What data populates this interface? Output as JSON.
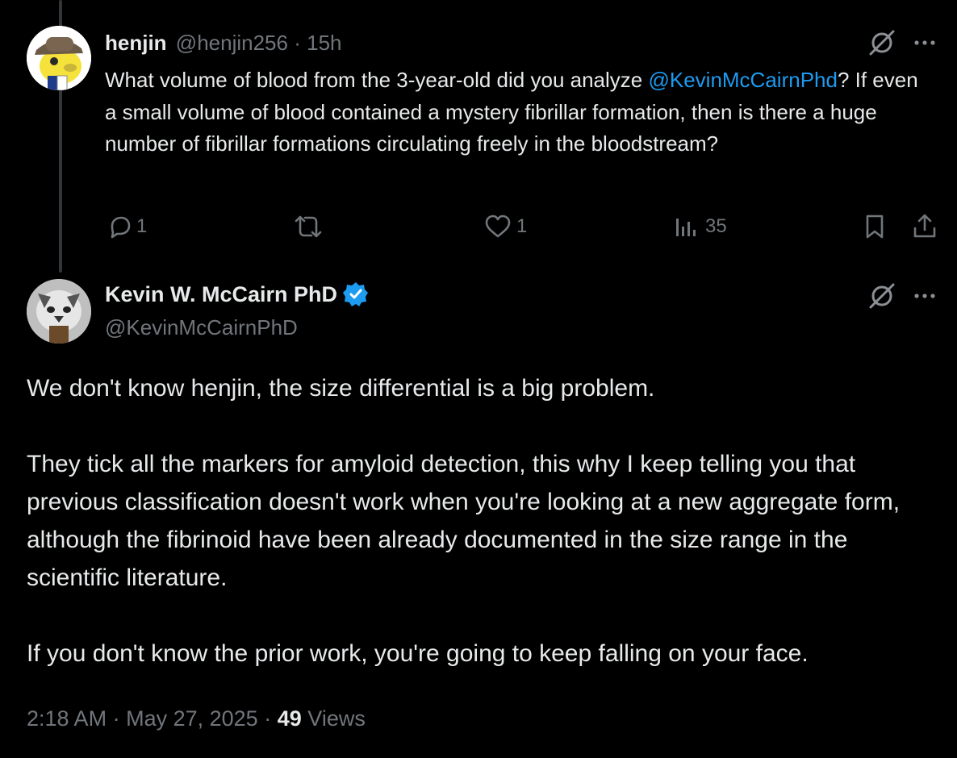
{
  "reply": {
    "display_name": "henjin",
    "handle": "@henjin256",
    "separator": "·",
    "time_ago": "15h",
    "text_prefix": "What volume of blood from the 3-year-old did you analyze ",
    "mention": "@KevinMcCairnPhd",
    "text_suffix": "? If even a small volume of blood contained a mystery fibrillar formation, then is there a huge number of fibrillar formations circulating freely in the bloodstream?",
    "actions": {
      "replies": "1",
      "reposts": "",
      "likes": "1",
      "views": "35"
    }
  },
  "main": {
    "display_name": "Kevin W. McCairn PhD",
    "handle": "@KevinMcCairnPhD",
    "verified_color": "#1d9bf0",
    "paragraphs": [
      "We don't know henjin, the size differential is a big problem.",
      "They tick all the markers for amyloid detection, this why I keep telling you that previous classification doesn't work when you're looking at a new aggregate form, although the fibrinoid have been already documented in the size range in the scientific literature.",
      "If you don't know the prior work, you're going to keep falling on your face."
    ],
    "time": "2:18 AM",
    "dot1": "·",
    "date": "May 27, 2025",
    "dot2": "·",
    "views_count": "49",
    "views_label": "Views"
  },
  "icons": [
    "grok-icon",
    "more-icon",
    "reply-icon",
    "repost-icon",
    "like-icon",
    "views-icon",
    "bookmark-icon",
    "share-icon",
    "verified-badge-icon"
  ]
}
